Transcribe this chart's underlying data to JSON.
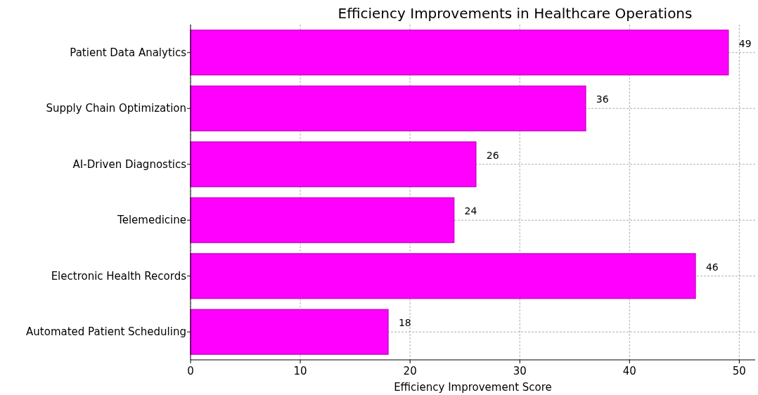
{
  "chart_data": {
    "type": "bar",
    "orientation": "horizontal",
    "title": "Efficiency Improvements in Healthcare Operations",
    "xlabel": "Efficiency Improvement Score",
    "categories": [
      "Patient Data Analytics",
      "Supply Chain Optimization",
      "AI-Driven Diagnostics",
      "Telemedicine",
      "Electronic Health Records",
      "Automated Patient Scheduling"
    ],
    "values": [
      49,
      36,
      26,
      24,
      46,
      18
    ],
    "color": "#ff00ff",
    "xlim": [
      0,
      51.45
    ],
    "xticks": [
      0,
      10,
      20,
      30,
      40,
      50
    ],
    "grid": true,
    "data_labels": true
  }
}
